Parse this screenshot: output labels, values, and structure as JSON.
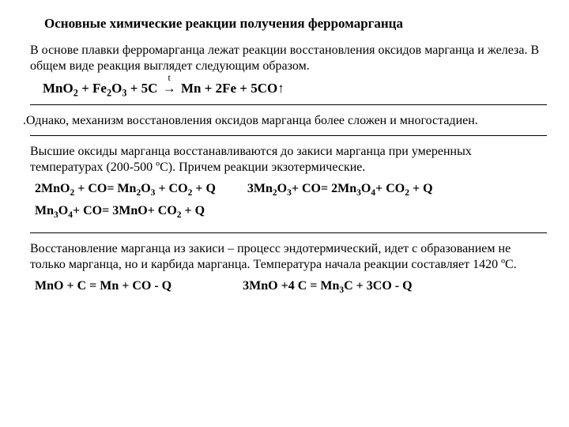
{
  "title": "Основные химические реакции получения ферромарганца",
  "intro": "В основе плавки ферромарганца лежат реакции восстановления оксидов марганца и железа. В общем виде реакция выглядет следующим образом.",
  "mainEq": {
    "lhs": "MnO",
    "sub1": "2",
    "mid1": " + Fe",
    "sub2": "2",
    "mid2": "O",
    "sub3": "3",
    "mid3": " + 5C ",
    "arrow": "→",
    "tlabel": "t",
    "rhs1": " Mn + 2Fe + 5CO",
    "up": "↑"
  },
  "para2": "Однако, механизм восстановления оксидов марганца более сложен и многостадиен.",
  "para3": "Высшие оксиды марганца восстанавливаются до закиси марганца при умеренных температурах (200-500 ºС). Причем реакции экзотермические.",
  "eqGroup1": {
    "e1": {
      "a": "2MnO",
      "s1": "2",
      "b": " + CO= Mn",
      "s2": "2",
      "c": "O",
      "s3": "3",
      "d": " + CO",
      "s4": "2",
      "e": " + Q"
    },
    "e2": {
      "a": "3Mn",
      "s1": "2",
      "b": "O",
      "s2": "3",
      "c": "+ CO= 2Mn",
      "s3": "3",
      "d": "O",
      "s4": "4",
      "e": "+ CO",
      "s5": "2",
      "f": " + Q"
    },
    "e3": {
      "a": "Mn",
      "s1": "3",
      "b": "O",
      "s2": "4",
      "c": "+ CO= 3MnO+ CO",
      "s3": "2",
      "d": " + Q"
    }
  },
  "para4": "Восстановление марганца из закиси – процесс эндотермический, идет с образованием не только марганца, но и карбида марганца. Температура начала реакции составляет 1420 ºС.",
  "eqGroup2": {
    "e1": {
      "text": "MnO + C = Mn + CO - Q"
    },
    "e2": {
      "a": "3MnO +4 C = Mn",
      "s1": "3",
      "b": "C + 3CO - Q"
    }
  },
  "style": {
    "fontFamily": "Times New Roman",
    "titleFontSize": 17,
    "bodyFontSize": 16,
    "textColor": "#000000",
    "background": "#ffffff",
    "hrColor": "#000000"
  }
}
